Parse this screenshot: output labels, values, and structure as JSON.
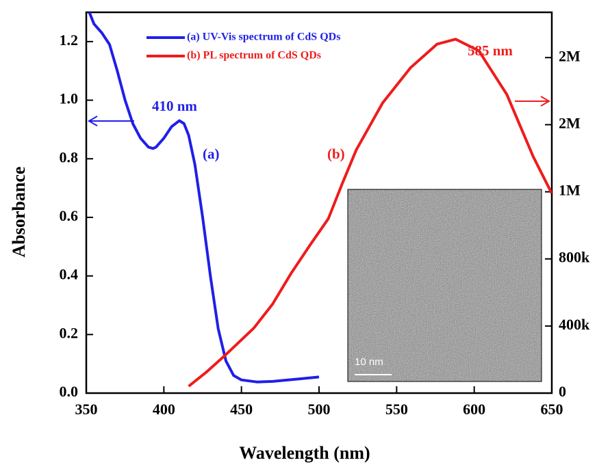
{
  "chart_data": {
    "type": "line",
    "x_label": "Wavelength (nm)",
    "y_label": "Absorbance",
    "xlim": [
      350,
      650
    ],
    "xticks": [
      350,
      400,
      450,
      500,
      550,
      600,
      650
    ],
    "ylim": [
      0,
      1.3
    ],
    "yticks": [
      {
        "value": 0,
        "label": "0.0"
      },
      0.2,
      0.4,
      0.6,
      0.8,
      {
        "value": 1,
        "label": "1.0"
      },
      1.2
    ],
    "y2lim": [
      0,
      2270000
    ],
    "y2ticks": [
      0,
      {
        "value": 400000,
        "label": "400k"
      },
      {
        "value": 800000,
        "label": "800k"
      },
      {
        "value": 1200000,
        "label": "1M"
      },
      {
        "value": 1600000,
        "label": "2M"
      },
      {
        "value": 2000000,
        "label": "2M"
      }
    ],
    "series": [
      {
        "name": "(a) UV-Vis spectrum of CdS QDs",
        "color": "#1f1fe8",
        "x": [
          352,
          355,
          360,
          365,
          370,
          375,
          380,
          385,
          390,
          393,
          395,
          400,
          405,
          410,
          413,
          416,
          420,
          425,
          430,
          435,
          440,
          445,
          450,
          460,
          470,
          480,
          490,
          500
        ],
        "values": [
          1.3,
          1.26,
          1.23,
          1.19,
          1.1,
          1.0,
          0.92,
          0.87,
          0.84,
          0.835,
          0.84,
          0.87,
          0.91,
          0.93,
          0.92,
          0.88,
          0.78,
          0.6,
          0.4,
          0.22,
          0.11,
          0.06,
          0.045,
          0.038,
          0.04,
          0.045,
          0.05,
          0.055
        ]
      },
      {
        "name": "(b) PL spectrum of CdS QDs",
        "color": "#ee1c1c",
        "axis": "y2",
        "x": [
          416,
          427,
          440,
          458,
          470,
          482,
          494,
          506,
          515,
          524,
          541,
          559,
          576,
          588,
          603,
          621,
          638,
          650
        ],
        "values": [
          41000,
          122000,
          230000,
          388000,
          530000,
          714000,
          880000,
          1040000,
          1250000,
          1450000,
          1730000,
          1940000,
          2080000,
          2110000,
          2040000,
          1780000,
          1410000,
          1190000
        ]
      }
    ],
    "annotations": [
      "410 nm",
      "585 nm",
      "(a)",
      "(b)"
    ],
    "inset_label": "10 nm"
  }
}
